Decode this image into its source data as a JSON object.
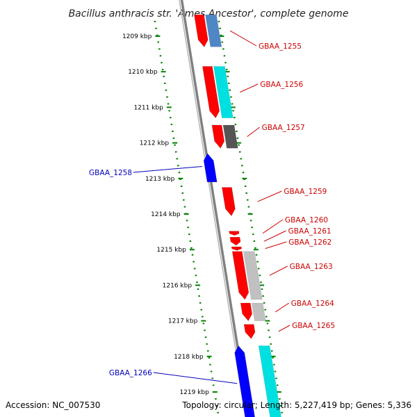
{
  "title": "Bacillus anthracis str. 'Ames Ancestor', complete genome",
  "footer": {
    "accession": "Accession: NC_007530",
    "topology": "Topology: circular; Length: 5,227,419 bp; Genes: 5,336"
  },
  "colors": {
    "forward_cds": "#ff0000",
    "reverse_cds": "#0000ff",
    "forward_label": "#cc0000",
    "reverse_label": "#0000bb",
    "tick": "#008000",
    "backbone": "#808080",
    "cyan_track": "#00e0e0",
    "steelblue_track": "#4f86c6",
    "dark_gray_track": "#555555",
    "light_gray_track": "#c0c0c0"
  },
  "scale": {
    "unit": "kbp",
    "ticks": [
      {
        "label": "1209 kbp",
        "kb": 1209
      },
      {
        "label": "1210 kbp",
        "kb": 1210
      },
      {
        "label": "1211 kbp",
        "kb": 1211
      },
      {
        "label": "1212 kbp",
        "kb": 1212
      },
      {
        "label": "1213 kbp",
        "kb": 1213
      },
      {
        "label": "1214 kbp",
        "kb": 1214
      },
      {
        "label": "1215 kbp",
        "kb": 1215
      },
      {
        "label": "1216 kbp",
        "kb": 1216
      },
      {
        "label": "1217 kbp",
        "kb": 1217
      },
      {
        "label": "1218 kbp",
        "kb": 1218
      },
      {
        "label": "1219 kbp",
        "kb": 1219
      }
    ]
  },
  "genes": [
    {
      "label": "GBAA_1255",
      "strand": "+",
      "start_kb": 1208.4,
      "end_kb": 1209.3
    },
    {
      "label": "GBAA_1256",
      "strand": "+",
      "start_kb": 1209.85,
      "end_kb": 1211.3
    },
    {
      "label": "GBAA_1257",
      "strand": "+",
      "start_kb": 1211.5,
      "end_kb": 1212.15
    },
    {
      "label": "GBAA_1258",
      "strand": "-",
      "start_kb": 1212.3,
      "end_kb": 1213.1
    },
    {
      "label": "GBAA_1259",
      "strand": "+",
      "start_kb": 1213.25,
      "end_kb": 1214.05
    },
    {
      "label": "GBAA_1260",
      "strand": "+",
      "start_kb": 1214.48,
      "end_kb": 1214.6
    },
    {
      "label": "GBAA_1261",
      "strand": "+",
      "start_kb": 1214.65,
      "end_kb": 1214.88
    },
    {
      "label": "GBAA_1262",
      "strand": "+",
      "start_kb": 1214.92,
      "end_kb": 1215.02
    },
    {
      "label": "GBAA_1263",
      "strand": "+",
      "start_kb": 1215.05,
      "end_kb": 1216.4
    },
    {
      "label": "GBAA_1264",
      "strand": "+",
      "start_kb": 1216.5,
      "end_kb": 1217.0
    },
    {
      "label": "GBAA_1265",
      "strand": "+",
      "start_kb": 1217.1,
      "end_kb": 1217.5
    },
    {
      "label": "GBAA_1266",
      "strand": "-",
      "start_kb": 1217.7,
      "end_kb": 1219.9
    }
  ],
  "feature_tracks": [
    {
      "color": "steelblue",
      "start_kb": 1208.4,
      "end_kb": 1209.3
    },
    {
      "color": "cyan",
      "start_kb": 1209.85,
      "end_kb": 1211.3
    },
    {
      "color": "dark_gray",
      "start_kb": 1211.5,
      "end_kb": 1212.15
    },
    {
      "color": "light_gray",
      "start_kb": 1215.05,
      "end_kb": 1216.4
    },
    {
      "color": "light_gray",
      "start_kb": 1216.5,
      "end_kb": 1217.0
    },
    {
      "color": "cyan",
      "start_kb": 1217.7,
      "end_kb": 1219.9
    }
  ]
}
